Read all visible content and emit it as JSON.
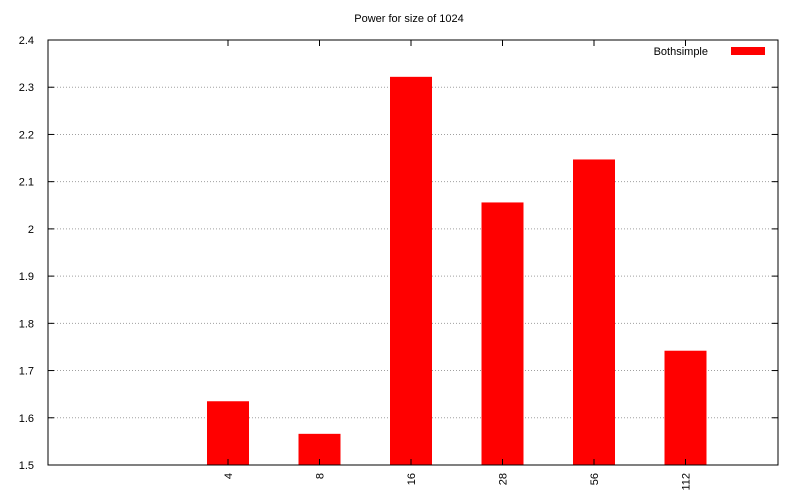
{
  "chart_data": {
    "type": "bar",
    "title": "Power for size of 1024",
    "xlabel": "",
    "ylabel": "",
    "categories": [
      "4",
      "8",
      "16",
      "28",
      "56",
      "112"
    ],
    "series": [
      {
        "name": "Bothsimple",
        "values": [
          1.635,
          1.566,
          2.322,
          2.056,
          2.147,
          1.742
        ]
      }
    ],
    "ylim": [
      1.5,
      2.4
    ],
    "yticks": [
      "1.5",
      "1.6",
      "1.7",
      "1.8",
      "1.9",
      "2",
      "2.1",
      "2.2",
      "2.3",
      "2.4"
    ],
    "grid": "horizontal dashed",
    "legend_position": "top-right",
    "colors": {
      "bar": "#ff0000"
    }
  }
}
